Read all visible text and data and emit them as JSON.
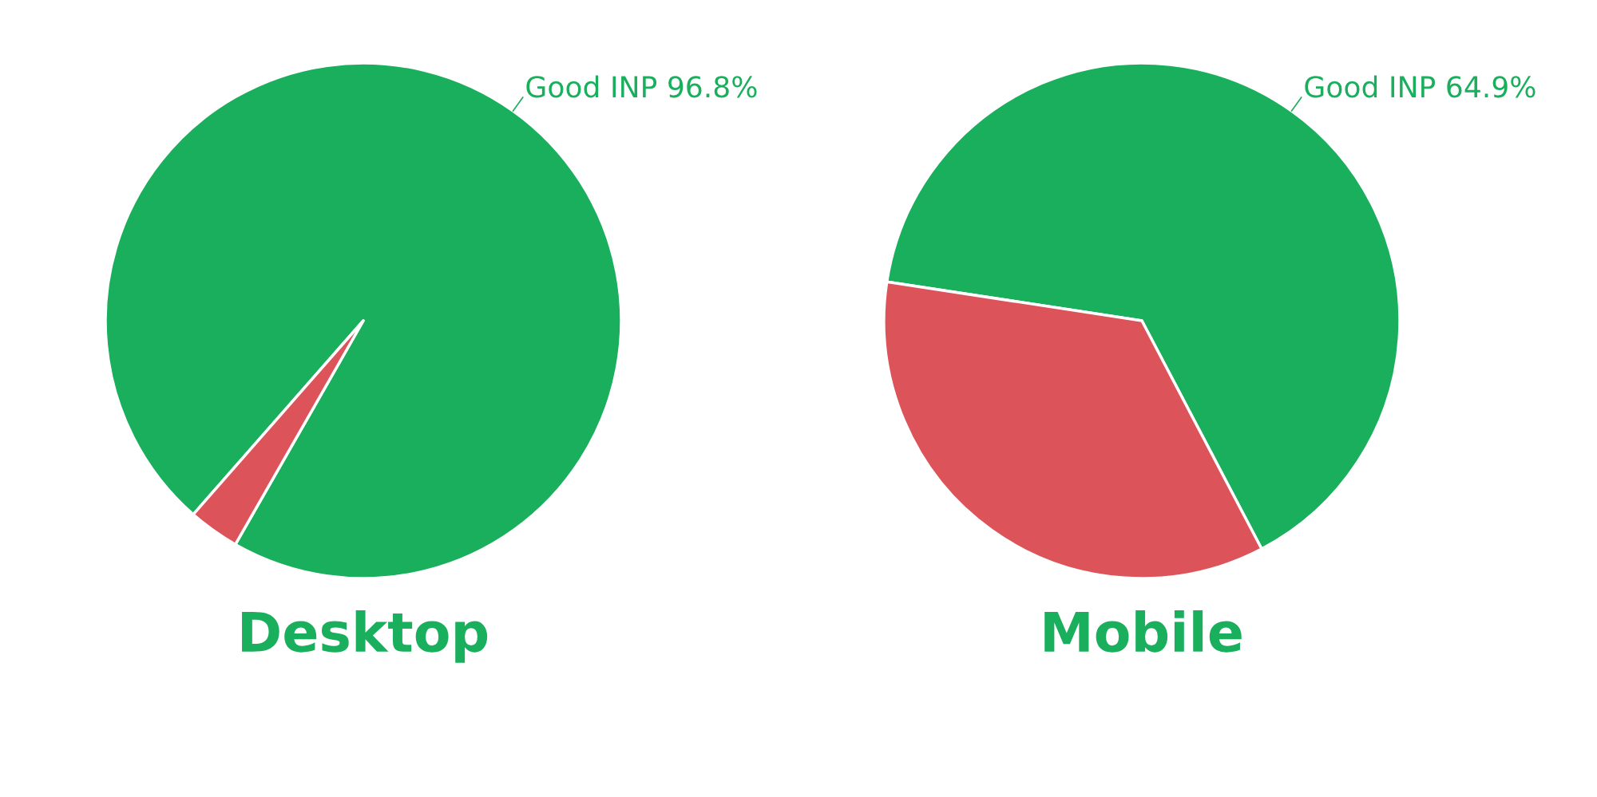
{
  "chart_data": [
    {
      "type": "pie",
      "title": "Desktop",
      "categories": [
        "Good INP",
        null
      ],
      "values": [
        96.8,
        3.2
      ],
      "colors": [
        "#1aaf5d",
        "#dd535a"
      ],
      "value_labels": [
        "96.8%",
        null
      ]
    },
    {
      "type": "pie",
      "title": "Mobile",
      "categories": [
        "Good INP",
        null
      ],
      "values": [
        64.9,
        35.1
      ],
      "colors": [
        "#1aaf5d",
        "#dd535a"
      ],
      "value_labels": [
        "64.9%",
        null
      ]
    }
  ]
}
